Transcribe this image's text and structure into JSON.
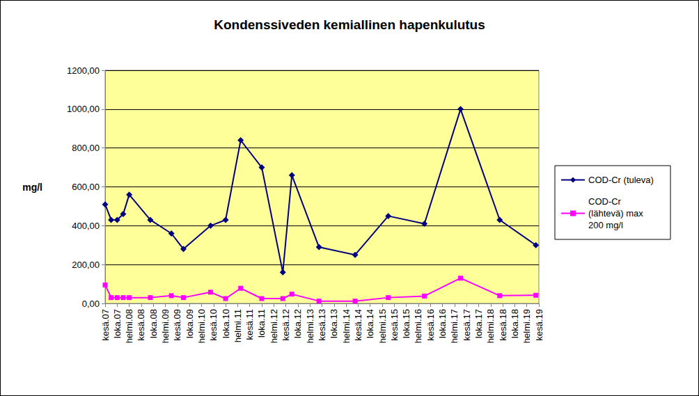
{
  "chart_data": {
    "type": "line",
    "title": "Kondenssiveden kemiallinen hapenkulutus",
    "y_label": "mg/l",
    "categories": [
      "kesä.07",
      null,
      null,
      null,
      "loka.07",
      null,
      null,
      null,
      "helmi.08",
      null,
      null,
      null,
      "kesä.08",
      null,
      null,
      null,
      "loka.08",
      null,
      null,
      null,
      "helmi.09",
      null,
      null,
      null,
      "kesä.09",
      null,
      null,
      null,
      "loka.09",
      null,
      null,
      null,
      "helmi.10",
      null,
      null,
      null,
      "kesä.10",
      null,
      null,
      null,
      "loka.10",
      null,
      null,
      null,
      "helmi.11",
      null,
      null,
      null,
      "kesä.11",
      null,
      null,
      null,
      "loka.11",
      null,
      null,
      null,
      "helmi.12",
      null,
      null,
      null,
      "kesä.12",
      null,
      null,
      null,
      "loka.12",
      null,
      null,
      null,
      "helmi.13",
      null,
      null,
      null,
      "kesä.13",
      null,
      null,
      null,
      "loka.13",
      null,
      null,
      null,
      "helmi.14",
      null,
      null,
      null,
      "kesä.14",
      null,
      null,
      null,
      "loka.14",
      null,
      null,
      null,
      "helmi.15",
      null,
      null,
      null,
      "kesä.15",
      null,
      null,
      null,
      "loka.15",
      null,
      null,
      null,
      "helmi.16",
      null,
      null,
      null,
      "kesä.16",
      null,
      null,
      null,
      "loka.16",
      null,
      null,
      null,
      "helmi.17",
      null,
      null,
      null,
      "kesä.17",
      null,
      null,
      null,
      "loka.17",
      null,
      null,
      null,
      "helmi.18",
      null,
      null,
      null,
      "kesä.18",
      null,
      null,
      null,
      "loka.18",
      null,
      null,
      null,
      "helmi.19",
      null,
      null,
      null,
      "kesä.19"
    ],
    "series": [
      {
        "name": "COD-Cr (tuleva)",
        "color": "#000080",
        "marker": "diamond",
        "values": [
          510,
          null,
          430,
          null,
          430,
          null,
          460,
          null,
          560,
          null,
          null,
          null,
          null,
          null,
          null,
          430,
          null,
          null,
          null,
          null,
          null,
          null,
          360,
          null,
          null,
          null,
          280,
          null,
          null,
          null,
          null,
          null,
          null,
          null,
          null,
          400,
          null,
          null,
          null,
          null,
          430,
          null,
          null,
          null,
          null,
          840,
          null,
          null,
          null,
          null,
          null,
          null,
          700,
          null,
          null,
          null,
          null,
          null,
          null,
          160,
          null,
          null,
          660,
          null,
          null,
          null,
          null,
          null,
          null,
          null,
          null,
          290,
          null,
          null,
          null,
          null,
          null,
          null,
          null,
          null,
          null,
          null,
          null,
          250,
          null,
          null,
          null,
          null,
          null,
          null,
          null,
          null,
          null,
          null,
          450,
          null,
          null,
          null,
          null,
          null,
          null,
          null,
          null,
          null,
          null,
          null,
          410,
          null,
          null,
          null,
          null,
          null,
          null,
          null,
          null,
          null,
          null,
          null,
          1000,
          null,
          null,
          null,
          null,
          null,
          null,
          null,
          null,
          null,
          null,
          null,
          null,
          430,
          null,
          null,
          null,
          null,
          null,
          null,
          null,
          null,
          null,
          null,
          null,
          300,
          null
        ]
      },
      {
        "name": "COD-Cr (lähtevä) max 200 mg/l",
        "color": "#FF00FF",
        "marker": "square",
        "values": [
          95,
          null,
          30,
          null,
          30,
          null,
          30,
          null,
          30,
          null,
          null,
          null,
          null,
          null,
          null,
          30,
          null,
          null,
          null,
          null,
          null,
          null,
          40,
          null,
          null,
          null,
          30,
          null,
          null,
          null,
          null,
          null,
          null,
          null,
          null,
          58,
          null,
          null,
          null,
          null,
          25,
          null,
          null,
          null,
          null,
          78,
          null,
          null,
          null,
          null,
          null,
          null,
          25,
          null,
          null,
          null,
          null,
          null,
          null,
          25,
          null,
          null,
          48,
          null,
          null,
          null,
          null,
          null,
          null,
          null,
          null,
          12,
          null,
          null,
          null,
          null,
          null,
          null,
          null,
          null,
          null,
          null,
          null,
          12,
          null,
          null,
          null,
          null,
          null,
          null,
          null,
          null,
          null,
          null,
          30,
          null,
          null,
          null,
          null,
          null,
          null,
          null,
          null,
          null,
          null,
          null,
          38,
          null,
          null,
          null,
          null,
          null,
          null,
          null,
          null,
          null,
          null,
          null,
          130,
          null,
          null,
          null,
          null,
          null,
          null,
          null,
          null,
          null,
          null,
          null,
          null,
          40,
          null,
          null,
          null,
          null,
          null,
          null,
          null,
          null,
          null,
          null,
          null,
          42,
          null
        ]
      }
    ],
    "ylim": [
      0,
      1200
    ],
    "yticks": [
      {
        "value": 0,
        "label": "0,00"
      },
      {
        "value": 200,
        "label": "200,00"
      },
      {
        "value": 400,
        "label": "400,00"
      },
      {
        "value": 600,
        "label": "600,00"
      },
      {
        "value": 800,
        "label": "800,00"
      },
      {
        "value": 1000,
        "label": "1000,00"
      },
      {
        "value": 1200,
        "label": "1200,00"
      }
    ],
    "grid": true,
    "legend": "right"
  }
}
